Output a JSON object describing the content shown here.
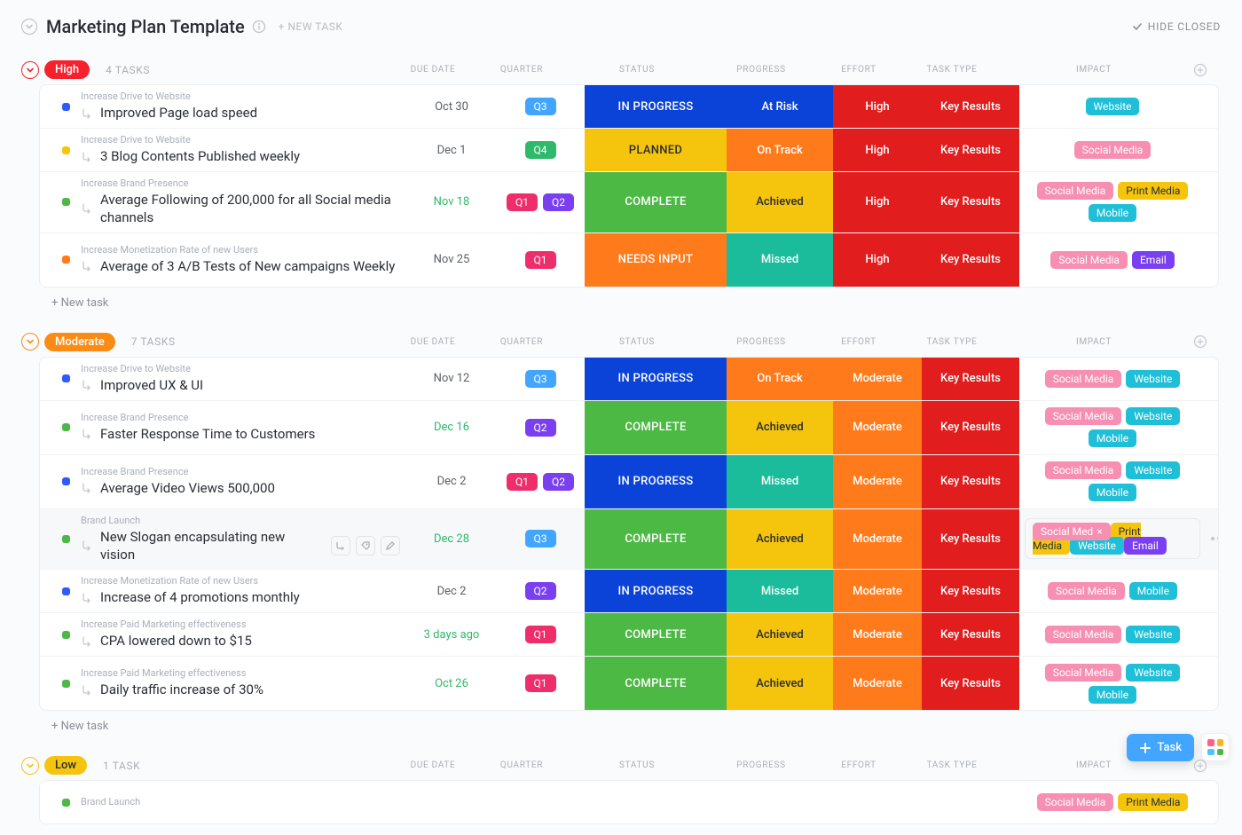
{
  "header": {
    "title": "Marketing Plan Template",
    "new_task": "+ NEW TASK",
    "hide_closed": "HIDE CLOSED"
  },
  "columns": [
    "DUE DATE",
    "QUARTER",
    "STATUS",
    "PROGRESS",
    "EFFORT",
    "TASK TYPE",
    "IMPACT"
  ],
  "colors": {
    "priority_high": "#f5222d",
    "priority_moderate": "#fa8c16",
    "priority_low": "#f5c50e",
    "due_plain": "#5a6066",
    "due_green": "#2fb96b",
    "q1": "#ee2e6b",
    "q2": "#7b3ff2",
    "q3": "#42a5ff",
    "q4": "#2fb96b",
    "status_in_progress": "#0b43d9",
    "status_planned": "#f5c50e",
    "status_complete": "#4cb944",
    "status_needs_input": "#ff7a1a",
    "progress_at_risk": "#0b43d9",
    "progress_on_track": "#ff7a1a",
    "progress_achieved": "#f5c50e",
    "progress_missed": "#1abc9c",
    "effort_high": "#e11d1d",
    "effort_moderate": "#ff7a1a",
    "task_type": "#e11d1d",
    "tag_website": "#1fbfd8",
    "tag_social": "#f78fb3",
    "tag_print": "#f5c50e",
    "tag_mobile": "#1fbfd8",
    "tag_email": "#7b3ff2",
    "bullet_blue": "#2e5bff",
    "bullet_yellow": "#f5c50e",
    "bullet_green": "#4cb944",
    "bullet_orange": "#ff7a1a"
  },
  "groups": [
    {
      "name": "High",
      "count": "4 TASKS",
      "pill_color": "#f5222d",
      "chev_color": "#f5222d",
      "tasks": [
        {
          "bullet": "bullet_blue",
          "parent": "Increase Drive to Website",
          "name": "Improved Page load speed",
          "due": "Oct 30",
          "due_color": "due_plain",
          "quarters": [
            "q3"
          ],
          "status": "IN PROGRESS",
          "status_c": "status_in_progress",
          "progress": "At Risk",
          "progress_c": "progress_at_risk",
          "effort": "High",
          "effort_c": "effort_high",
          "task_type": "Key Results",
          "impact": [
            {
              "t": "Website",
              "c": "tag_website"
            }
          ]
        },
        {
          "bullet": "bullet_yellow",
          "parent": "Increase Drive to Website",
          "name": "3 Blog Contents Published weekly",
          "due": "Dec 1",
          "due_color": "due_plain",
          "quarters": [
            "q4"
          ],
          "status": "PLANNED",
          "status_c": "status_planned",
          "progress": "On Track",
          "progress_c": "progress_on_track",
          "effort": "High",
          "effort_c": "effort_high",
          "task_type": "Key Results",
          "impact": [
            {
              "t": "Social Media",
              "c": "tag_social"
            }
          ]
        },
        {
          "bullet": "bullet_green",
          "parent": "Increase Brand Presence",
          "name": "Average Following of 200,000 for all Social media channels",
          "due": "Nov 18",
          "due_color": "due_green",
          "quarters": [
            "q1",
            "q2"
          ],
          "status": "COMPLETE",
          "status_c": "status_complete",
          "progress": "Achieved",
          "progress_c": "progress_achieved",
          "effort": "High",
          "effort_c": "effort_high",
          "task_type": "Key Results",
          "impact": [
            {
              "t": "Social Media",
              "c": "tag_social"
            },
            {
              "t": "Print Media",
              "c": "tag_print"
            },
            {
              "t": "Mobile",
              "c": "tag_mobile"
            }
          ],
          "multi": true
        },
        {
          "bullet": "bullet_orange",
          "parent": "Increase Monetization Rate of new Users",
          "name": "Average of 3 A/B Tests of New campaigns Weekly",
          "due": "Nov 25",
          "due_color": "due_plain",
          "quarters": [
            "q1"
          ],
          "status": "NEEDS INPUT",
          "status_c": "status_needs_input",
          "progress": "Missed",
          "progress_c": "progress_missed",
          "effort": "High",
          "effort_c": "effort_high",
          "task_type": "Key Results",
          "impact": [
            {
              "t": "Social Media",
              "c": "tag_social"
            },
            {
              "t": "Email",
              "c": "tag_email"
            }
          ],
          "multi": true
        }
      ],
      "new_task": "+ New task"
    },
    {
      "name": "Moderate",
      "count": "7 TASKS",
      "pill_color": "#fa8c16",
      "chev_color": "#fa8c16",
      "tasks": [
        {
          "bullet": "bullet_blue",
          "parent": "Increase Drive to Website",
          "name": "Improved UX & UI",
          "due": "Nov 12",
          "due_color": "due_plain",
          "quarters": [
            "q3"
          ],
          "status": "IN PROGRESS",
          "status_c": "status_in_progress",
          "progress": "On Track",
          "progress_c": "progress_on_track",
          "effort": "Moderate",
          "effort_c": "effort_moderate",
          "task_type": "Key Results",
          "impact": [
            {
              "t": "Social Media",
              "c": "tag_social"
            },
            {
              "t": "Website",
              "c": "tag_website"
            }
          ]
        },
        {
          "bullet": "bullet_green",
          "parent": "Increase Brand Presence",
          "name": "Faster Response Time to Customers",
          "due": "Dec 16",
          "due_color": "due_green",
          "quarters": [
            "q2"
          ],
          "status": "COMPLETE",
          "status_c": "status_complete",
          "progress": "Achieved",
          "progress_c": "progress_achieved",
          "effort": "Moderate",
          "effort_c": "effort_moderate",
          "task_type": "Key Results",
          "impact": [
            {
              "t": "Social Media",
              "c": "tag_social"
            },
            {
              "t": "Website",
              "c": "tag_website"
            },
            {
              "t": "Mobile",
              "c": "tag_mobile"
            }
          ],
          "multi": true
        },
        {
          "bullet": "bullet_blue",
          "parent": "Increase Brand Presence",
          "name": "Average Video Views 500,000",
          "due": "Dec 2",
          "due_color": "due_plain",
          "quarters": [
            "q1",
            "q2"
          ],
          "status": "IN PROGRESS",
          "status_c": "status_in_progress",
          "progress": "Missed",
          "progress_c": "progress_missed",
          "effort": "Moderate",
          "effort_c": "effort_moderate",
          "task_type": "Key Results",
          "impact": [
            {
              "t": "Social Media",
              "c": "tag_social"
            },
            {
              "t": "Website",
              "c": "tag_website"
            },
            {
              "t": "Mobile",
              "c": "tag_mobile"
            }
          ],
          "multi": true
        },
        {
          "bullet": "bullet_green",
          "parent": "Brand Launch",
          "name": "New Slogan encapsulating new vision",
          "due": "Dec 28",
          "due_color": "due_green",
          "quarters": [
            "q3"
          ],
          "status": "COMPLETE",
          "status_c": "status_complete",
          "progress": "Achieved",
          "progress_c": "progress_achieved",
          "effort": "Moderate",
          "effort_c": "effort_moderate",
          "task_type": "Key Results",
          "impact": [
            {
              "t": "Social Med",
              "c": "tag_social",
              "x": true
            },
            {
              "t": "Print Media",
              "c": "tag_print"
            },
            {
              "t": "Website",
              "c": "tag_website"
            },
            {
              "t": "Email",
              "c": "tag_email"
            }
          ],
          "hovered": true,
          "impact_boxed": true,
          "multi": true
        },
        {
          "bullet": "bullet_blue",
          "parent": "Increase Monetization Rate of new Users",
          "name": "Increase of 4 promotions monthly",
          "due": "Dec 2",
          "due_color": "due_plain",
          "quarters": [
            "q2"
          ],
          "status": "IN PROGRESS",
          "status_c": "status_in_progress",
          "progress": "Missed",
          "progress_c": "progress_missed",
          "effort": "Moderate",
          "effort_c": "effort_moderate",
          "task_type": "Key Results",
          "impact": [
            {
              "t": "Social Media",
              "c": "tag_social"
            },
            {
              "t": "Mobile",
              "c": "tag_mobile"
            }
          ]
        },
        {
          "bullet": "bullet_green",
          "parent": "Increase Paid Marketing effectiveness",
          "name": "CPA lowered down to $15",
          "due": "3 days ago",
          "due_color": "due_green",
          "quarters": [
            "q1"
          ],
          "status": "COMPLETE",
          "status_c": "status_complete",
          "progress": "Achieved",
          "progress_c": "progress_achieved",
          "effort": "Moderate",
          "effort_c": "effort_moderate",
          "task_type": "Key Results",
          "impact": [
            {
              "t": "Social Media",
              "c": "tag_social"
            },
            {
              "t": "Website",
              "c": "tag_website"
            }
          ]
        },
        {
          "bullet": "bullet_green",
          "parent": "Increase Paid Marketing effectiveness",
          "name": "Daily traffic increase of 30%",
          "due": "Oct 26",
          "due_color": "due_green",
          "quarters": [
            "q1"
          ],
          "status": "COMPLETE",
          "status_c": "status_complete",
          "progress": "Achieved",
          "progress_c": "progress_achieved",
          "effort": "Moderate",
          "effort_c": "effort_moderate",
          "task_type": "Key Results",
          "impact": [
            {
              "t": "Social Media",
              "c": "tag_social"
            },
            {
              "t": "Website",
              "c": "tag_website"
            },
            {
              "t": "Mobile",
              "c": "tag_mobile"
            }
          ],
          "multi": true
        }
      ],
      "new_task": "+ New task"
    },
    {
      "name": "Low",
      "count": "1 TASK",
      "pill_color": "#f5c50e",
      "chev_color": "#f5c50e",
      "tasks": [
        {
          "bullet": "bullet_green",
          "parent": "Brand Launch",
          "name": "",
          "due": "",
          "due_color": "due_plain",
          "quarters": [],
          "status": "",
          "status_c": "",
          "progress": "",
          "progress_c": "",
          "effort": "",
          "effort_c": "",
          "task_type": "",
          "impact": [
            {
              "t": "Social Media",
              "c": "tag_social"
            },
            {
              "t": "Print Media",
              "c": "tag_print"
            }
          ],
          "partial": true
        }
      ]
    }
  ],
  "quarter_labels": {
    "q1": "Q1",
    "q2": "Q2",
    "q3": "Q3",
    "q4": "Q4"
  },
  "fab": "Task",
  "apps_colors": [
    "#ff5e8a",
    "#ffb020",
    "#4cc3ff",
    "#4cb944"
  ]
}
